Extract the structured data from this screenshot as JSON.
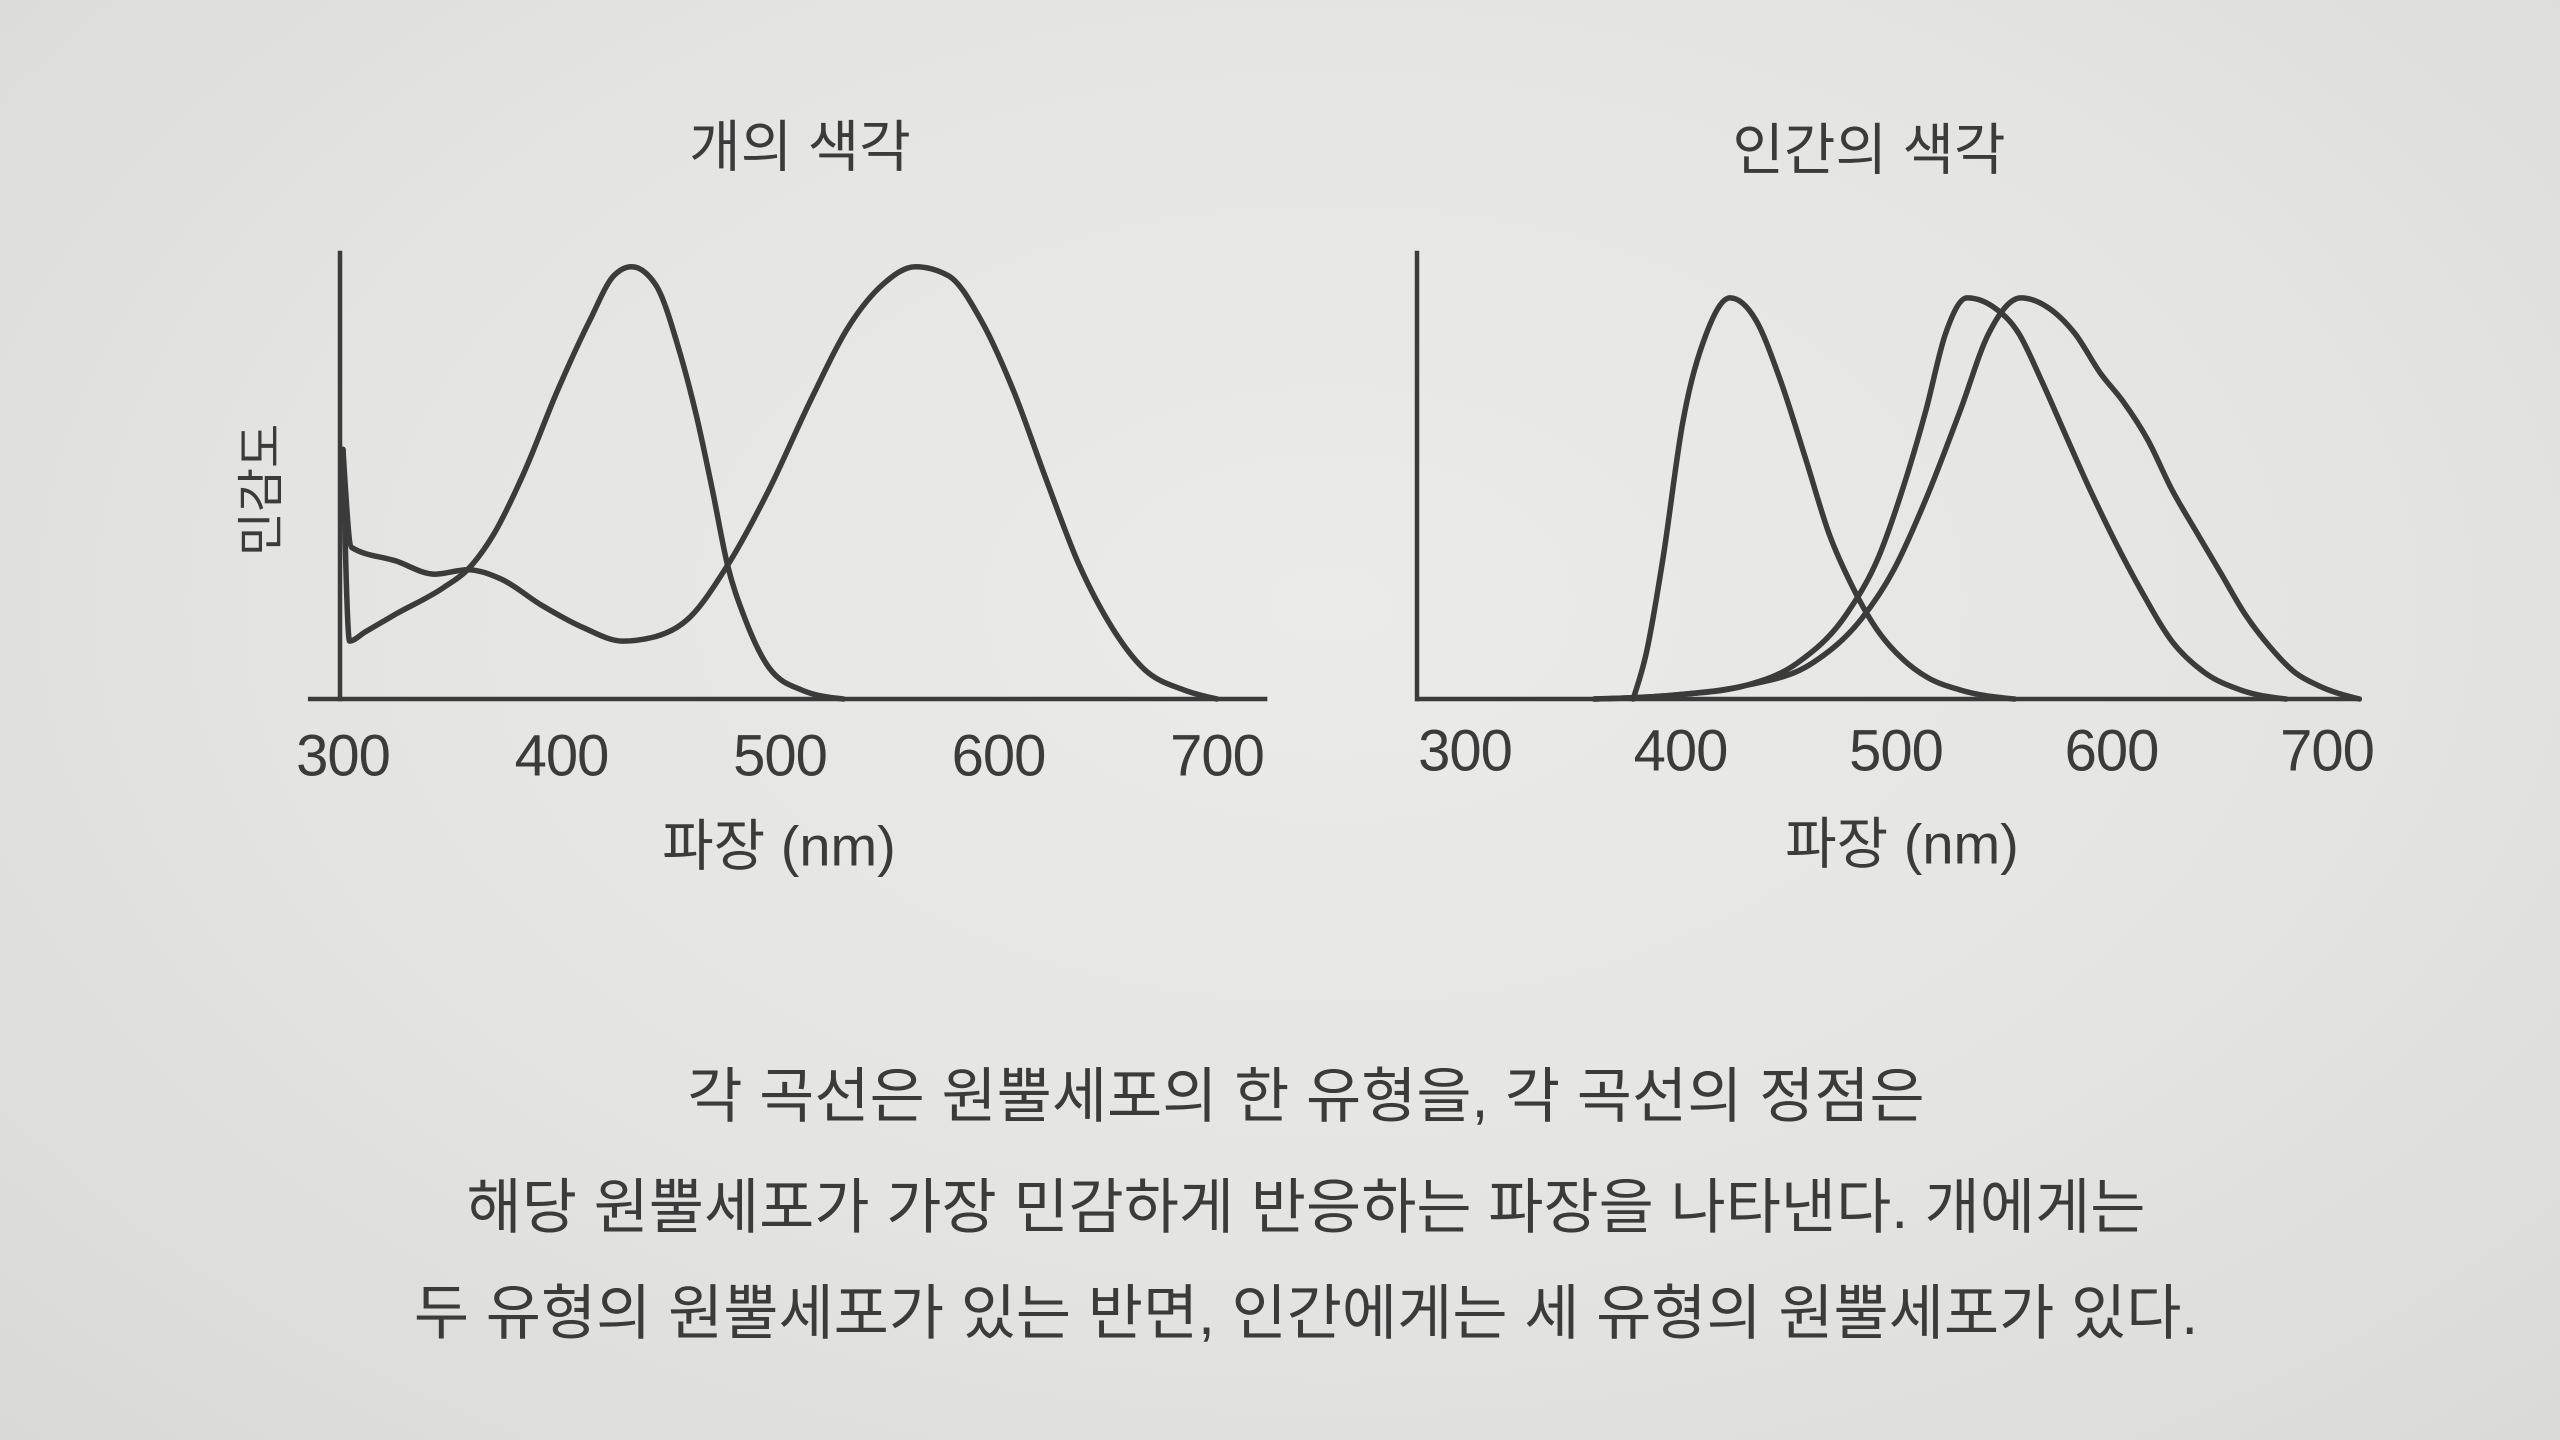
{
  "colors": {
    "paper": "#e5e5e3",
    "ink": "#3b3b3b"
  },
  "chart_data": [
    {
      "type": "line",
      "title": "개의 색각",
      "xlabel": "파장 (nm)",
      "ylabel": "민감도",
      "x_ticks": [
        300,
        400,
        500,
        600,
        700
      ],
      "y_ticks": [],
      "xlim": [
        285,
        722
      ],
      "ylim": [
        0,
        1
      ],
      "grid": false,
      "legend": "none",
      "series": [
        {
          "x": [
            300,
            303,
            310,
            324,
            346,
            357,
            369,
            383,
            398,
            413,
            424,
            432,
            443,
            454,
            462,
            469,
            476,
            484,
            495,
            510,
            529
          ],
          "y": [
            0.56,
            0.13,
            0.15,
            0.19,
            0.25,
            0.29,
            0.37,
            0.51,
            0.69,
            0.85,
            0.95,
            0.97,
            0.93,
            0.78,
            0.63,
            0.47,
            0.3,
            0.18,
            0.07,
            0.02,
            0
          ]
        },
        {
          "x": [
            300,
            304,
            324,
            342,
            357,
            372,
            391,
            410,
            428,
            443,
            458,
            476,
            495,
            514,
            532,
            547,
            562,
            577,
            592,
            607,
            622,
            637,
            652,
            666,
            685,
            700
          ],
          "y": [
            0.56,
            0.34,
            0.31,
            0.28,
            0.29,
            0.27,
            0.21,
            0.16,
            0.13,
            0.14,
            0.18,
            0.3,
            0.47,
            0.67,
            0.84,
            0.93,
            0.97,
            0.95,
            0.85,
            0.69,
            0.49,
            0.3,
            0.16,
            0.07,
            0.02,
            0
          ]
        }
      ]
    },
    {
      "type": "line",
      "title": "인간의 색각",
      "xlabel": "파장 (nm)",
      "x_ticks": [
        300,
        400,
        500,
        600,
        700
      ],
      "y_ticks": [],
      "xlim": [
        278,
        715
      ],
      "ylim": [
        0,
        1
      ],
      "grid": false,
      "legend": "none",
      "series": [
        {
          "x": [
            378,
            384,
            392,
            401,
            412,
            423,
            435,
            446,
            458,
            469,
            480,
            492,
            503,
            514,
            530,
            555
          ],
          "y": [
            0,
            0.1,
            0.32,
            0.62,
            0.82,
            0.9,
            0.85,
            0.72,
            0.54,
            0.37,
            0.25,
            0.15,
            0.09,
            0.05,
            0.02,
            0
          ]
        },
        {
          "x": [
            360,
            400,
            430,
            454,
            477,
            492,
            503,
            514,
            523,
            533,
            545,
            557,
            567,
            578,
            590,
            602,
            613,
            628,
            643,
            660,
            681
          ],
          "y": [
            0,
            0.01,
            0.03,
            0.08,
            0.19,
            0.32,
            0.47,
            0.65,
            0.82,
            0.9,
            0.88,
            0.82,
            0.72,
            0.6,
            0.47,
            0.35,
            0.25,
            0.13,
            0.06,
            0.02,
            0
          ]
        },
        {
          "x": [
            360,
            400,
            430,
            461,
            484,
            499,
            514,
            530,
            543,
            558,
            570,
            583,
            595,
            605,
            617,
            628,
            640,
            651,
            662,
            673,
            685,
            696,
            715
          ],
          "y": [
            0,
            0.01,
            0.03,
            0.08,
            0.18,
            0.29,
            0.45,
            0.65,
            0.82,
            0.9,
            0.88,
            0.82,
            0.73,
            0.67,
            0.58,
            0.47,
            0.37,
            0.28,
            0.19,
            0.12,
            0.06,
            0.03,
            0
          ]
        }
      ]
    }
  ],
  "caption": {
    "lines": [
      "각 곡선은 원뿔세포의 한 유형을, 각 곡선의 정점은",
      "해당 원뿔세포가 가장 민감하게 반응하는 파장을 나타낸다. 개에게는",
      "두 유형의 원뿔세포가 있는 반면, 인간에게는 세 유형의 원뿔세포가 있다."
    ]
  }
}
